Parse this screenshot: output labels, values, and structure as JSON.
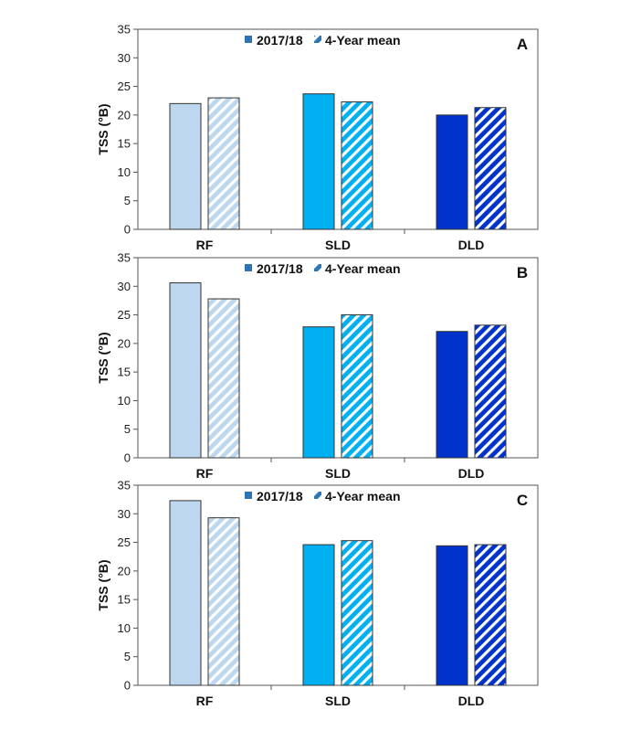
{
  "colors": {
    "RF": "#bdd7ee",
    "SLD": "#00b0f0",
    "DLD": "#0033cc",
    "legend_swatch": "#2e75b6"
  },
  "legend": {
    "series_1": "2017/18",
    "series_2": "4-Year mean"
  },
  "chart_data": [
    {
      "type": "bar",
      "panel": "A",
      "categories": [
        "RF",
        "SLD",
        "DLD"
      ],
      "series": [
        {
          "name": "2017/18",
          "values": [
            22.0,
            23.7,
            20.0
          ]
        },
        {
          "name": "4-Year mean",
          "values": [
            23.0,
            22.3,
            21.3
          ]
        }
      ],
      "ylabel": "TSS (°B)",
      "ylim": [
        0,
        35
      ],
      "yticks": [
        "0",
        "5",
        "10",
        "15",
        "20",
        "25",
        "30",
        "35"
      ],
      "legend_position": "top-center",
      "grid": false
    },
    {
      "type": "bar",
      "panel": "B",
      "categories": [
        "RF",
        "SLD",
        "DLD"
      ],
      "series": [
        {
          "name": "2017/18",
          "values": [
            30.6,
            22.9,
            22.1
          ]
        },
        {
          "name": "4-Year mean",
          "values": [
            27.8,
            25.0,
            23.2
          ]
        }
      ],
      "ylabel": "TSS (°B)",
      "ylim": [
        0,
        35
      ],
      "yticks": [
        "0",
        "5",
        "10",
        "15",
        "20",
        "25",
        "30",
        "35"
      ],
      "legend_position": "top-center",
      "grid": false
    },
    {
      "type": "bar",
      "panel": "C",
      "categories": [
        "RF",
        "SLD",
        "DLD"
      ],
      "series": [
        {
          "name": "2017/18",
          "values": [
            32.3,
            24.6,
            24.4
          ]
        },
        {
          "name": "4-Year mean",
          "values": [
            29.3,
            25.3,
            24.6
          ]
        }
      ],
      "ylabel": "TSS (°B)",
      "ylim": [
        0,
        35
      ],
      "yticks": [
        "0",
        "5",
        "10",
        "15",
        "20",
        "25",
        "30",
        "35"
      ],
      "legend_position": "top-center",
      "grid": false
    }
  ]
}
